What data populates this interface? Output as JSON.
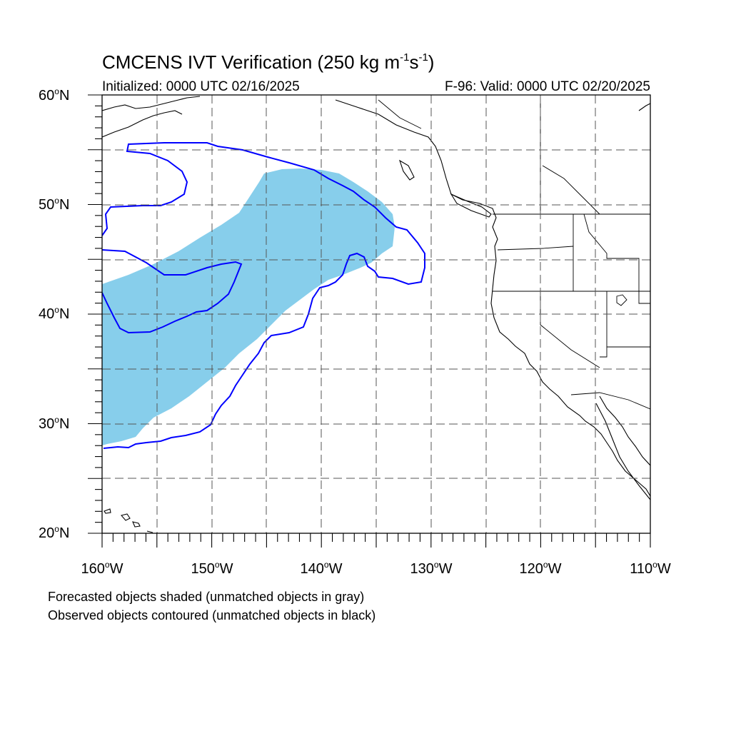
{
  "title": {
    "prefix": "CMCENS IVT Verification (250 kg m",
    "exp1": "-1",
    "mid": "s",
    "exp2": "-1",
    "suffix": ")"
  },
  "initialized": "Initialized: 0000 UTC 02/16/2025",
  "valid": "F-96: Valid: 0000 UTC 02/20/2025",
  "map": {
    "projection": "cylindrical equidistant",
    "lon_range": [
      -160,
      -110
    ],
    "lat_range": [
      20,
      60
    ],
    "grid_style": "dashed",
    "forecast_fill_color": "#87CEEB",
    "observed_contour_color": "#0000FF",
    "coastline_color": "#000000",
    "lat_labels": [
      {
        "num": "60",
        "unit": "o",
        "hem": "N"
      },
      {
        "num": "50",
        "unit": "o",
        "hem": "N"
      },
      {
        "num": "40",
        "unit": "o",
        "hem": "N"
      },
      {
        "num": "30",
        "unit": "o",
        "hem": "N"
      },
      {
        "num": "20",
        "unit": "o",
        "hem": "N"
      }
    ],
    "lon_labels": [
      {
        "num": "160",
        "unit": "o",
        "hem": "W"
      },
      {
        "num": "150",
        "unit": "o",
        "hem": "W"
      },
      {
        "num": "140",
        "unit": "o",
        "hem": "W"
      },
      {
        "num": "130",
        "unit": "o",
        "hem": "W"
      },
      {
        "num": "120",
        "unit": "o",
        "hem": "W"
      },
      {
        "num": "110",
        "unit": "o",
        "hem": "W"
      }
    ]
  },
  "legend": {
    "line1": "Forecasted objects shaded (unmatched objects in gray)",
    "line2": "Observed objects contoured (unmatched objects in black)"
  }
}
